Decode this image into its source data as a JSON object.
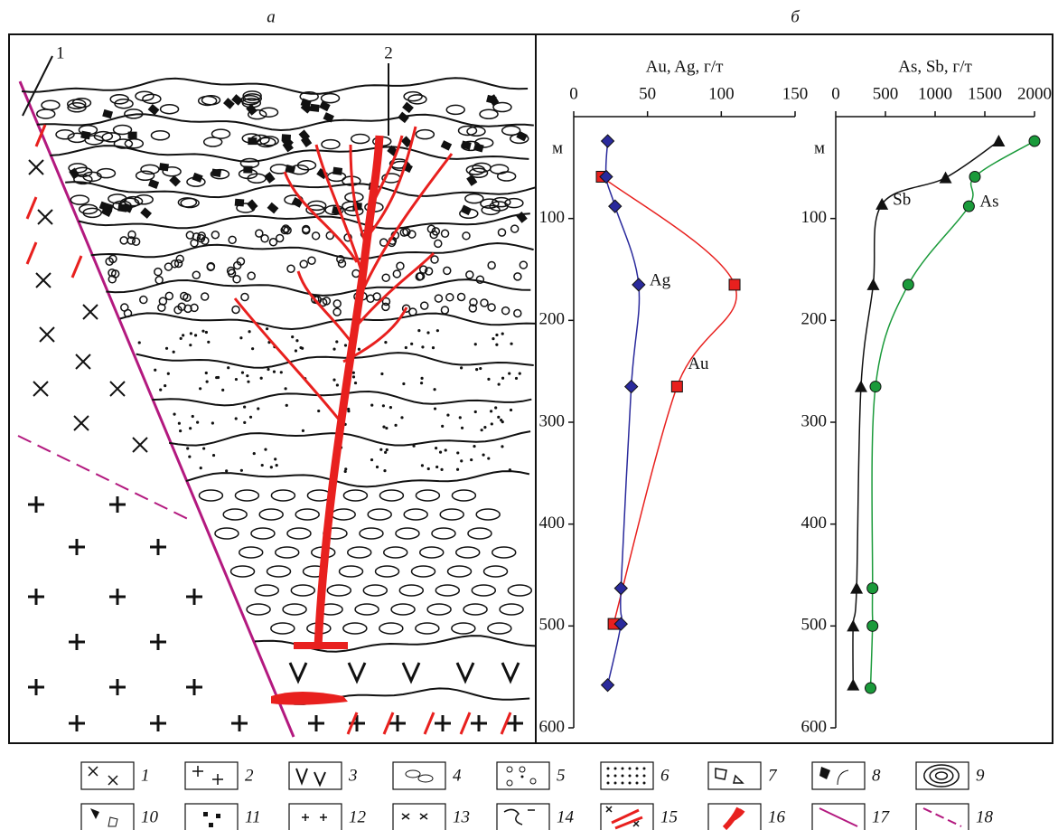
{
  "panel_labels": [
    "а",
    "б"
  ],
  "section": {
    "labels": [
      "1",
      "2"
    ]
  },
  "chart_data": [
    {
      "type": "line",
      "x_label": "Au, Ag, г/т",
      "y_label": "м",
      "xlim": [
        0,
        150
      ],
      "xticks": [
        0,
        50,
        100,
        150
      ],
      "ylim": [
        600,
        0
      ],
      "yticks": [
        100,
        200,
        300,
        400,
        500,
        600
      ],
      "series": [
        {
          "name": "Au",
          "color": "#e8201e",
          "marker": "square",
          "x": [
            19,
            109,
            70,
            27
          ],
          "y": [
            59,
            165,
            265,
            498
          ]
        },
        {
          "name": "Ag",
          "color": "#2a2a9c",
          "marker": "diamond",
          "x": [
            23,
            22,
            28,
            44,
            39,
            32,
            32,
            23
          ],
          "y": [
            24,
            59,
            88,
            165,
            265,
            463,
            498,
            558
          ]
        }
      ]
    },
    {
      "type": "line",
      "x_label": "As, Sb, г/т",
      "y_label": "м",
      "xlim": [
        0,
        2000
      ],
      "xticks": [
        0,
        500,
        1000,
        1500,
        2000
      ],
      "ylim": [
        600,
        0
      ],
      "yticks": [
        100,
        200,
        300,
        400,
        500,
        600
      ],
      "series": [
        {
          "name": "Sb",
          "color": "#111111",
          "marker": "triangle",
          "x": [
            1640,
            1105,
            465,
            377,
            254,
            210,
            175,
            175
          ],
          "y": [
            24,
            60,
            86,
            165,
            265,
            463,
            500,
            558
          ]
        },
        {
          "name": "As",
          "color": "#1a9a3a",
          "marker": "circle",
          "x": [
            2000,
            1400,
            1340,
            730,
            400,
            370,
            370,
            350
          ],
          "y": [
            24,
            59,
            88,
            165,
            265,
            463,
            500,
            561
          ]
        }
      ]
    }
  ],
  "legend": [
    "1",
    "2",
    "3",
    "4",
    "5",
    "6",
    "7",
    "8",
    "9",
    "10",
    "11",
    "12",
    "13",
    "14",
    "15",
    "16",
    "17",
    "18"
  ]
}
